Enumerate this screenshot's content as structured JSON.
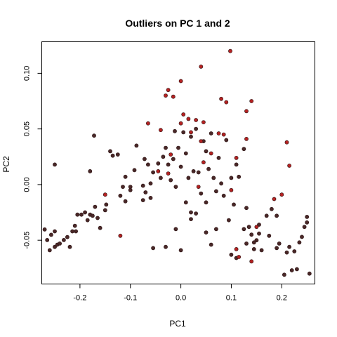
{
  "chart_data": {
    "type": "scatter",
    "title": "Outliers on PC 1 and 2",
    "xlabel": "PC1",
    "ylabel": "PC2",
    "xlim": [
      -0.275,
      0.265
    ],
    "ylim": [
      -0.089,
      0.128
    ],
    "xticks": [
      -0.2,
      -0.1,
      0.0,
      0.1,
      0.2
    ],
    "yticks": [
      -0.05,
      0.0,
      0.05,
      0.1
    ],
    "xtick_labels": [
      "-0.2",
      "-0.1",
      "0.0",
      "0.1",
      "0.2"
    ],
    "ytick_labels": [
      "-0.05",
      "0.00",
      "0.05",
      "0.10"
    ],
    "grid": false,
    "legend": "none",
    "colors": {
      "normal": "#4a2828",
      "outlier": "#b52222",
      "edge": "#2a1212"
    },
    "series": [
      {
        "values": [
          [
            -0.27,
            -0.0403
          ],
          [
            -0.265,
            -0.0498
          ],
          [
            -0.26,
            -0.059
          ],
          [
            -0.257,
            -0.0451
          ],
          [
            -0.25,
            -0.042
          ],
          [
            -0.25,
            -0.056
          ],
          [
            -0.245,
            -0.054
          ],
          [
            -0.24,
            -0.053
          ],
          [
            -0.232,
            -0.0498
          ],
          [
            -0.225,
            -0.0472
          ],
          [
            -0.22,
            -0.056
          ],
          [
            -0.215,
            -0.042
          ],
          [
            -0.21,
            -0.037
          ],
          [
            -0.208,
            -0.042
          ],
          [
            -0.205,
            -0.027
          ],
          [
            -0.197,
            -0.027
          ],
          [
            -0.19,
            -0.025
          ],
          [
            -0.185,
            -0.032
          ],
          [
            -0.18,
            -0.027
          ],
          [
            -0.175,
            -0.028
          ],
          [
            -0.17,
            -0.02
          ],
          [
            -0.165,
            -0.03
          ],
          [
            -0.16,
            -0.039
          ],
          [
            -0.172,
            0.044
          ],
          [
            -0.18,
            0.012
          ],
          [
            -0.148,
            -0.018
          ],
          [
            -0.14,
            0.03
          ],
          [
            -0.135,
            0.026
          ],
          [
            -0.125,
            0.027
          ],
          [
            -0.11,
            0.007
          ],
          [
            -0.115,
            -0.002
          ],
          [
            -0.11,
            -0.015
          ],
          [
            -0.1,
            -0.002
          ],
          [
            -0.092,
            0.013
          ],
          [
            -0.088,
            0.035
          ],
          [
            -0.075,
            -0.001
          ],
          [
            -0.072,
            0.023
          ],
          [
            -0.07,
            -0.007
          ],
          [
            -0.065,
            0.018
          ],
          [
            -0.06,
            0.001
          ],
          [
            -0.055,
            0.011
          ],
          [
            -0.045,
            0.019
          ],
          [
            -0.04,
            0.006
          ],
          [
            -0.035,
            0.025
          ],
          [
            -0.03,
            0.033
          ],
          [
            -0.025,
            0.018
          ],
          [
            -0.02,
            0.004
          ],
          [
            -0.015,
            0.023
          ],
          [
            -0.012,
            0.048
          ],
          [
            -0.01,
            -0.002
          ],
          [
            -0.005,
            0.033
          ],
          [
            0.0,
            0.016
          ],
          [
            0.005,
            0.047
          ],
          [
            0.01,
            0.028
          ],
          [
            0.015,
            0.006
          ],
          [
            0.02,
            0.043
          ],
          [
            0.025,
            0.012
          ],
          [
            0.03,
            0.05
          ],
          [
            0.035,
            0.011
          ],
          [
            0.04,
            -0.008
          ],
          [
            0.045,
            0.039
          ],
          [
            0.05,
            0.03
          ],
          [
            0.055,
            0.014
          ],
          [
            0.06,
            0.046
          ],
          [
            0.065,
            0.006
          ],
          [
            0.07,
            -0.006
          ],
          [
            0.075,
            0.024
          ],
          [
            0.08,
            0.001
          ],
          [
            0.085,
            -0.01
          ],
          [
            0.09,
            0.04
          ],
          [
            0.1,
            0.006
          ],
          [
            0.105,
            -0.018
          ],
          [
            0.11,
            0.018
          ],
          [
            0.115,
            0.007
          ],
          [
            0.125,
            0.032
          ],
          [
            0.13,
            -0.021
          ],
          [
            0.135,
            -0.038
          ],
          [
            0.14,
            -0.045
          ],
          [
            0.145,
            -0.052
          ],
          [
            0.15,
            -0.05
          ],
          [
            0.155,
            -0.036
          ],
          [
            0.16,
            -0.059
          ],
          [
            0.17,
            -0.028
          ],
          [
            0.175,
            -0.046
          ],
          [
            0.18,
            -0.022
          ],
          [
            0.19,
            -0.028
          ],
          [
            0.195,
            -0.053
          ],
          [
            0.205,
            -0.081
          ],
          [
            0.21,
            -0.061
          ],
          [
            0.215,
            -0.056
          ],
          [
            0.22,
            -0.077
          ],
          [
            0.225,
            -0.06
          ],
          [
            0.23,
            -0.076
          ],
          [
            0.235,
            -0.052
          ],
          [
            0.24,
            -0.047
          ],
          [
            0.245,
            -0.038
          ],
          [
            0.25,
            -0.029
          ],
          [
            0.255,
            -0.08
          ],
          [
            0.25,
            -0.034
          ],
          [
            0.19,
            -0.057
          ],
          [
            0.155,
            -0.044
          ],
          [
            0.13,
            -0.053
          ],
          [
            0.1,
            -0.063
          ],
          [
            0.095,
            -0.032
          ],
          [
            0.07,
            -0.04
          ],
          [
            0.06,
            -0.054
          ],
          [
            0.05,
            -0.043
          ],
          [
            0.03,
            -0.026
          ],
          [
            0.02,
            -0.031
          ],
          [
            0.01,
            -0.016
          ],
          [
            0.0,
            -0.059
          ],
          [
            -0.01,
            -0.04
          ],
          [
            -0.03,
            -0.056
          ],
          [
            -0.055,
            -0.057
          ],
          [
            -0.06,
            -0.012
          ],
          [
            -0.075,
            -0.014
          ],
          [
            -0.1,
            -0.005
          ],
          [
            -0.12,
            -0.01
          ],
          [
            -0.15,
            -0.023
          ],
          [
            -0.25,
            0.018
          ],
          [
            0.02,
            -0.025
          ],
          [
            0.05,
            -0.016
          ],
          [
            0.11,
            -0.066
          ],
          [
            0.125,
            -0.04
          ],
          [
            0.145,
            -0.058
          ]
        ]
      },
      {
        "values": [
          [
            0.098,
            0.12
          ],
          [
            0.04,
            0.106
          ],
          [
            0.0,
            0.093
          ],
          [
            -0.03,
            0.08
          ],
          [
            -0.025,
            0.085
          ],
          [
            -0.015,
            0.079
          ],
          [
            0.08,
            0.077
          ],
          [
            0.09,
            0.074
          ],
          [
            0.14,
            0.075
          ],
          [
            0.13,
            0.066
          ],
          [
            0.005,
            0.063
          ],
          [
            0.015,
            0.059
          ],
          [
            0.03,
            0.058
          ],
          [
            0.045,
            0.056
          ],
          [
            0.0,
            0.055
          ],
          [
            -0.04,
            0.049
          ],
          [
            -0.065,
            0.055
          ],
          [
            0.075,
            0.046
          ],
          [
            0.085,
            0.045
          ],
          [
            0.13,
            0.041
          ],
          [
            0.21,
            0.038
          ],
          [
            0.11,
            0.024
          ],
          [
            0.04,
            0.039
          ],
          [
            0.06,
            0.028
          ],
          [
            0.045,
            0.02
          ],
          [
            -0.025,
            0.01
          ],
          [
            -0.045,
            0.012
          ],
          [
            0.035,
            -0.002
          ],
          [
            -0.15,
            -0.009
          ],
          [
            -0.12,
            -0.046
          ],
          [
            0.14,
            -0.069
          ],
          [
            0.2,
            -0.009
          ],
          [
            0.15,
            -0.038
          ],
          [
            0.185,
            -0.013
          ],
          [
            0.215,
            0.017
          ],
          [
            0.1,
            -0.005
          ],
          [
            0.11,
            -0.058
          ],
          [
            0.115,
            -0.065
          ],
          [
            -0.02,
            0.027
          ],
          [
            0.02,
            0.047
          ]
        ]
      }
    ]
  }
}
